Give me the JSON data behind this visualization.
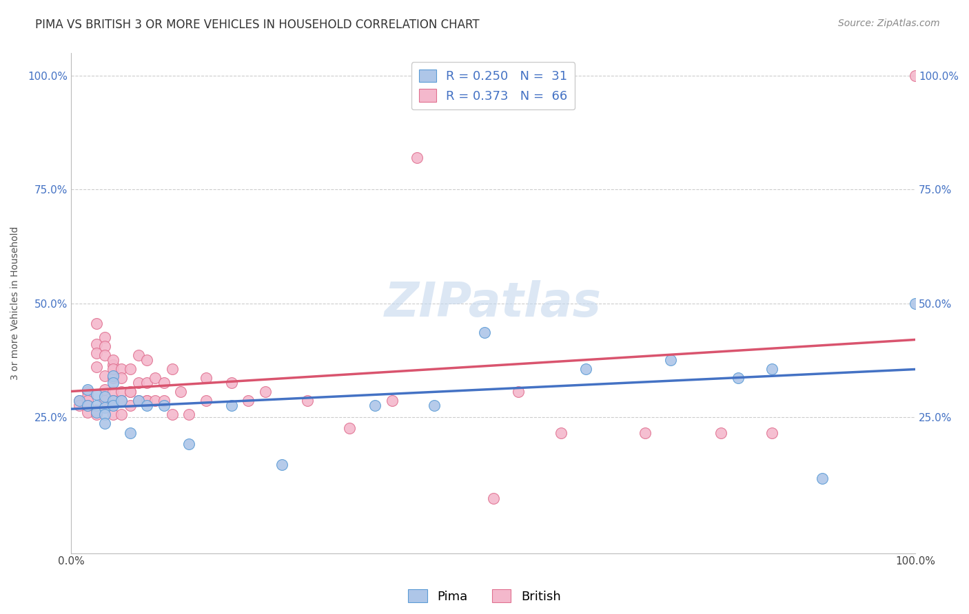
{
  "title": "PIMA VS BRITISH 3 OR MORE VEHICLES IN HOUSEHOLD CORRELATION CHART",
  "source_text": "Source: ZipAtlas.com",
  "ylabel": "3 or more Vehicles in Household",
  "xlim": [
    0.0,
    1.0
  ],
  "ylim": [
    -0.05,
    1.05
  ],
  "xtick_positions": [
    0.0,
    1.0
  ],
  "xtick_labels": [
    "0.0%",
    "100.0%"
  ],
  "ytick_positions": [
    0.25,
    0.5,
    0.75,
    1.0
  ],
  "ytick_labels": [
    "25.0%",
    "50.0%",
    "75.0%",
    "100.0%"
  ],
  "grid_color": "#cccccc",
  "background_color": "#ffffff",
  "watermark": "ZIPatlas",
  "legend_R_pima": "R = 0.250",
  "legend_N_pima": "N =  31",
  "legend_R_british": "R = 0.373",
  "legend_N_british": "N =  66",
  "pima_color": "#aec6e8",
  "british_color": "#f4b8cc",
  "pima_edge_color": "#5b9bd5",
  "british_edge_color": "#e07090",
  "pima_line_color": "#4472c4",
  "british_line_color": "#d9546e",
  "title_fontsize": 12,
  "axis_label_fontsize": 10,
  "tick_fontsize": 11,
  "legend_fontsize": 13,
  "source_fontsize": 10,
  "watermark_fontsize": 50,
  "watermark_color": "#c5d8ee",
  "watermark_alpha": 0.6,
  "pima_scatter": [
    [
      0.01,
      0.285
    ],
    [
      0.02,
      0.31
    ],
    [
      0.02,
      0.275
    ],
    [
      0.03,
      0.3
    ],
    [
      0.03,
      0.275
    ],
    [
      0.03,
      0.26
    ],
    [
      0.04,
      0.295
    ],
    [
      0.04,
      0.27
    ],
    [
      0.04,
      0.255
    ],
    [
      0.04,
      0.235
    ],
    [
      0.05,
      0.34
    ],
    [
      0.05,
      0.325
    ],
    [
      0.05,
      0.285
    ],
    [
      0.05,
      0.275
    ],
    [
      0.06,
      0.285
    ],
    [
      0.07,
      0.215
    ],
    [
      0.08,
      0.285
    ],
    [
      0.09,
      0.275
    ],
    [
      0.11,
      0.275
    ],
    [
      0.14,
      0.19
    ],
    [
      0.19,
      0.275
    ],
    [
      0.25,
      0.145
    ],
    [
      0.36,
      0.275
    ],
    [
      0.43,
      0.275
    ],
    [
      0.49,
      0.435
    ],
    [
      0.61,
      0.355
    ],
    [
      0.71,
      0.375
    ],
    [
      0.79,
      0.335
    ],
    [
      0.83,
      0.355
    ],
    [
      0.89,
      0.115
    ],
    [
      1.0,
      0.5
    ]
  ],
  "british_scatter": [
    [
      0.01,
      0.285
    ],
    [
      0.01,
      0.275
    ],
    [
      0.02,
      0.26
    ],
    [
      0.02,
      0.305
    ],
    [
      0.02,
      0.295
    ],
    [
      0.02,
      0.285
    ],
    [
      0.02,
      0.275
    ],
    [
      0.03,
      0.265
    ],
    [
      0.03,
      0.255
    ],
    [
      0.03,
      0.455
    ],
    [
      0.03,
      0.41
    ],
    [
      0.03,
      0.39
    ],
    [
      0.03,
      0.36
    ],
    [
      0.04,
      0.34
    ],
    [
      0.04,
      0.31
    ],
    [
      0.04,
      0.285
    ],
    [
      0.04,
      0.425
    ],
    [
      0.04,
      0.405
    ],
    [
      0.04,
      0.385
    ],
    [
      0.05,
      0.365
    ],
    [
      0.05,
      0.335
    ],
    [
      0.05,
      0.305
    ],
    [
      0.05,
      0.285
    ],
    [
      0.05,
      0.255
    ],
    [
      0.05,
      0.375
    ],
    [
      0.05,
      0.355
    ],
    [
      0.06,
      0.305
    ],
    [
      0.06,
      0.285
    ],
    [
      0.06,
      0.255
    ],
    [
      0.06,
      0.355
    ],
    [
      0.06,
      0.335
    ],
    [
      0.07,
      0.305
    ],
    [
      0.07,
      0.275
    ],
    [
      0.07,
      0.355
    ],
    [
      0.07,
      0.305
    ],
    [
      0.08,
      0.285
    ],
    [
      0.08,
      0.385
    ],
    [
      0.08,
      0.325
    ],
    [
      0.09,
      0.285
    ],
    [
      0.09,
      0.375
    ],
    [
      0.09,
      0.325
    ],
    [
      0.09,
      0.285
    ],
    [
      0.1,
      0.335
    ],
    [
      0.1,
      0.285
    ],
    [
      0.11,
      0.325
    ],
    [
      0.11,
      0.285
    ],
    [
      0.12,
      0.355
    ],
    [
      0.12,
      0.255
    ],
    [
      0.13,
      0.305
    ],
    [
      0.14,
      0.255
    ],
    [
      0.16,
      0.335
    ],
    [
      0.16,
      0.285
    ],
    [
      0.19,
      0.325
    ],
    [
      0.21,
      0.285
    ],
    [
      0.23,
      0.305
    ],
    [
      0.28,
      0.285
    ],
    [
      0.33,
      0.225
    ],
    [
      0.38,
      0.285
    ],
    [
      0.41,
      0.82
    ],
    [
      0.5,
      0.07
    ],
    [
      0.53,
      0.305
    ],
    [
      0.58,
      0.215
    ],
    [
      0.68,
      0.215
    ],
    [
      0.77,
      0.215
    ],
    [
      0.83,
      0.215
    ],
    [
      1.0,
      1.0
    ]
  ]
}
